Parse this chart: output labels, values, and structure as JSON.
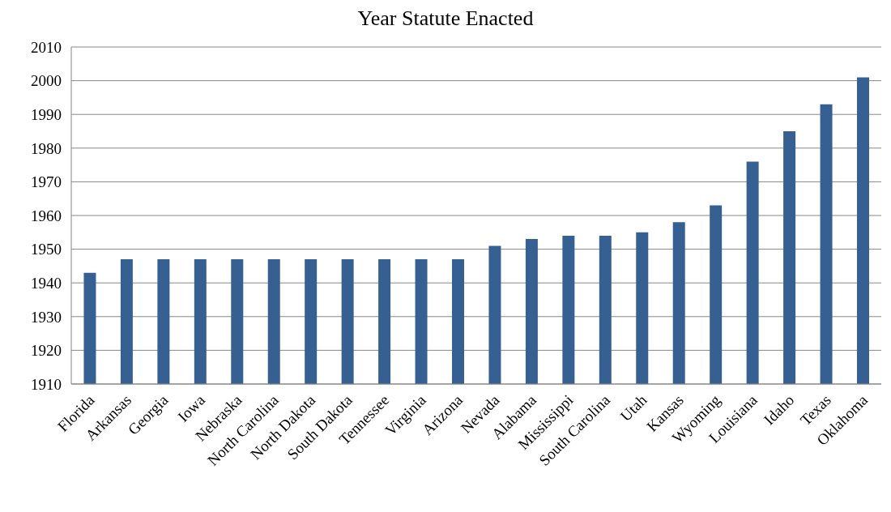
{
  "chart_data": {
    "type": "bar",
    "title": "Year Statute Enacted",
    "categories": [
      "Florida",
      "Arkansas",
      "Georgia",
      "Iowa",
      "Nebraska",
      "North Carolina",
      "North Dakota",
      "South Dakota",
      "Tennessee",
      "Virginia",
      "Arizona",
      "Nevada",
      "Alabama",
      "Mississippi",
      "South Carolina",
      "Utah",
      "Kansas",
      "Wyoming",
      "Louisiana",
      "Idaho",
      "Texas",
      "Oklahoma"
    ],
    "values": [
      1943,
      1947,
      1947,
      1947,
      1947,
      1947,
      1947,
      1947,
      1947,
      1947,
      1947,
      1951,
      1953,
      1954,
      1954,
      1955,
      1958,
      1963,
      1976,
      1985,
      1993,
      2001
    ],
    "color": "#366092",
    "ylim": [
      1910,
      2010
    ],
    "yticks": [
      1910,
      1920,
      1930,
      1940,
      1950,
      1960,
      1970,
      1980,
      1990,
      2000,
      2010
    ],
    "grid": "y"
  }
}
